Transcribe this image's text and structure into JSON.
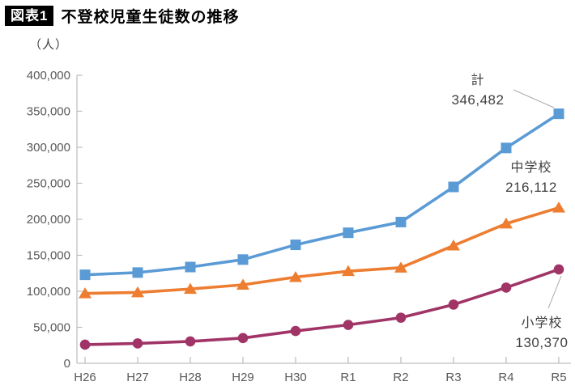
{
  "header": {
    "badge": "図表1",
    "title": "不登校児童生徒数の推移"
  },
  "chart_data": {
    "type": "line",
    "title": "不登校児童生徒数の推移",
    "unit_label": "（人）",
    "categories": [
      "H26",
      "H27",
      "H28",
      "H29",
      "H30",
      "R1",
      "R2",
      "R3",
      "R4",
      "R5"
    ],
    "series": [
      {
        "key": "total",
        "name": "計",
        "color": "#5B9BD5",
        "marker": "square",
        "values": [
          122897,
          125991,
          133683,
          144031,
          164528,
          181272,
          196127,
          244940,
          299048,
          346482
        ]
      },
      {
        "key": "junior-high",
        "name": "中学校",
        "color": "#ED7D31",
        "marker": "triangle",
        "values": [
          97033,
          98408,
          103235,
          108999,
          119687,
          127922,
          132777,
          163442,
          193936,
          216112
        ]
      },
      {
        "key": "elementary",
        "name": "小学校",
        "color": "#A13467",
        "marker": "circle",
        "values": [
          25864,
          27583,
          30448,
          35032,
          44841,
          53350,
          63350,
          81498,
          105112,
          130370
        ]
      }
    ],
    "ylim": [
      0,
      400000
    ],
    "ytick_step": 50000,
    "ytick_labels": [
      "0",
      "50,000",
      "100,000",
      "150,000",
      "200,000",
      "250,000",
      "300,000",
      "350,000",
      "400,000"
    ],
    "grid": false,
    "legend": "inline-annotations",
    "annotations": [
      {
        "series": "計",
        "label": "計",
        "value": "346,482"
      },
      {
        "series": "中学校",
        "label": "中学校",
        "value": "216,112"
      },
      {
        "series": "小学校",
        "label": "小学校",
        "value": "130,370"
      }
    ]
  },
  "colors": {
    "axis": "#BFBFBF",
    "tick_label": "#595959",
    "annotation": "#404040",
    "callout": "#A6A6A6",
    "badge_bg": "#000000",
    "badge_fg": "#FFFFFF"
  }
}
